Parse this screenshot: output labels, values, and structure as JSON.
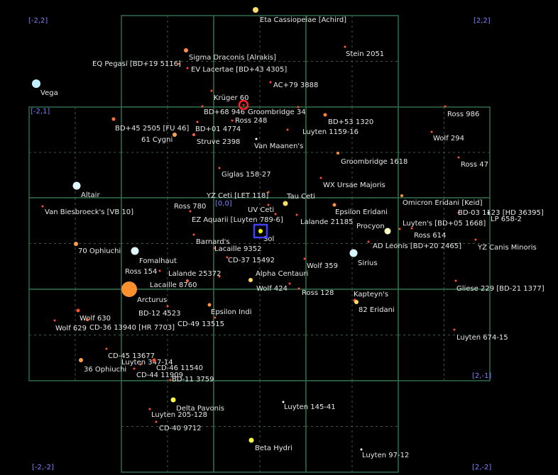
{
  "sector_labels": [
    {
      "text": "[-2,2]"
    },
    {
      "text": "[2,2]"
    },
    {
      "text": "[-2,1]"
    },
    {
      "text": "[0,0]"
    },
    {
      "text": "[2,-1]"
    },
    {
      "text": "[-2,-2]"
    },
    {
      "text": "[2,-2]"
    }
  ],
  "colors": {
    "grid_line": "#2e6b4a",
    "subgrid_line": "#3a5a48",
    "label_text": "#e8e8e8",
    "coord_text": "#8080ff",
    "sol_marker": "#4040ff",
    "selected_marker": "#ff2020"
  },
  "stars": [
    {
      "name": "Eta Cassiopeiae [Achird]",
      "color": "#ffe070"
    },
    {
      "name": "Stein 2051",
      "color": "#ff6040"
    },
    {
      "name": "Sigma Draconis [Alrakis]",
      "color": "#ff9040"
    },
    {
      "name": "EQ Pegasi [BD+19 5116]",
      "color": "#ff5030"
    },
    {
      "name": "EV Lacertae  [BD+43 4305]",
      "color": "#ff5030"
    },
    {
      "name": "AC+79  3888",
      "color": "#ff5030"
    },
    {
      "name": "Vega",
      "color": "#c0f0ff"
    },
    {
      "name": "Krüger 60",
      "color": "#ff5030"
    },
    {
      "name": "BD+68  946",
      "color": "#ff5030"
    },
    {
      "name": "Groombridge 34",
      "color": "#ff5030"
    },
    {
      "name": "Ross 248",
      "color": "#ff5030"
    },
    {
      "name": "BD+45  2505 [FU 46]",
      "color": "#ff7040"
    },
    {
      "name": "BD+01  4774",
      "color": "#ff6040"
    },
    {
      "name": "BD+53  1320",
      "color": "#ff8040"
    },
    {
      "name": "Luyten 1159-16",
      "color": "#ff5030"
    },
    {
      "name": "Ross 986",
      "color": "#ff5030"
    },
    {
      "name": "61 Cygni",
      "color": "#ffa050"
    },
    {
      "name": "Struve 2398",
      "color": "#ff6040"
    },
    {
      "name": "Van Maanen's",
      "color": "#ffffff"
    },
    {
      "name": "Wolf  294",
      "color": "#ff5030"
    },
    {
      "name": "Groombridge 1618",
      "color": "#ff9040"
    },
    {
      "name": "Ross 47",
      "color": "#ff5030"
    },
    {
      "name": "Giglas 158-27",
      "color": "#ff5030"
    },
    {
      "name": "Altair",
      "color": "#e0f8ff"
    },
    {
      "name": "WX Ursae Majoris",
      "color": "#ff5030"
    },
    {
      "name": "YZ Ceti [LET 118]",
      "color": "#ff5030"
    },
    {
      "name": "Tau Ceti",
      "color": "#ffe060"
    },
    {
      "name": "Omicron Eridani [Keid]",
      "color": "#ff9040"
    },
    {
      "name": "Van Biesbroeck's [VB 10]",
      "color": "#ff5030"
    },
    {
      "name": "Ross 780",
      "color": "#ff5030"
    },
    {
      "name": "UV Ceti",
      "color": "#ff5030"
    },
    {
      "name": "Epsilon Eridani",
      "color": "#ff9040"
    },
    {
      "name": "BD-03  1123 [HD 36395]",
      "color": "#ff5030"
    },
    {
      "name": "LP 658-2",
      "color": "#ffffff"
    },
    {
      "name": "EZ Aquarii [Luyten 789-6]",
      "color": "#ff5030"
    },
    {
      "name": "Lalande 21185",
      "color": "#ff5030"
    },
    {
      "name": "Procyon",
      "color": "#ffffc0"
    },
    {
      "name": "Luyten's [BD+05 1668]",
      "color": "#ff5030"
    },
    {
      "name": "Sol",
      "color": "#ffff00"
    },
    {
      "name": "Ross 614",
      "color": "#ff5030"
    },
    {
      "name": "Barnard's",
      "color": "#ff5030"
    },
    {
      "name": "AD Leonis [BD+20  2465]",
      "color": "#ff5030"
    },
    {
      "name": "YZ Canis Minoris",
      "color": "#ff5030"
    },
    {
      "name": "70 Ophiuchi",
      "color": "#ffa050"
    },
    {
      "name": "Lacaille 9352",
      "color": "#ff6040"
    },
    {
      "name": "Fomalhaut",
      "color": "#e0f8ff"
    },
    {
      "name": "CD-37  15492",
      "color": "#ff5030"
    },
    {
      "name": "Sirius",
      "color": "#d8f8ff"
    },
    {
      "name": "Wolf 359",
      "color": "#ff5030"
    },
    {
      "name": "Ross 154",
      "color": "#ff5030"
    },
    {
      "name": "Lalande 25372",
      "color": "#ff5030"
    },
    {
      "name": "Alpha Centauri",
      "color": "#ffe060"
    },
    {
      "name": "Lacaille 8760",
      "color": "#ff6040"
    },
    {
      "name": "Wolf 424",
      "color": "#ff5030"
    },
    {
      "name": "Ross 128",
      "color": "#ff5030"
    },
    {
      "name": "Kapteyn's",
      "color": "#ff5030"
    },
    {
      "name": "Gliese 229 [BD-21  1377]",
      "color": "#ff5030"
    },
    {
      "name": "Arcturus",
      "color": "#ff9030"
    },
    {
      "name": "82 Eridani",
      "color": "#ffe060"
    },
    {
      "name": "BD-12  4523",
      "color": "#ff5030"
    },
    {
      "name": "Epsilon Indi",
      "color": "#ff9040"
    },
    {
      "name": "CD-49  13515",
      "color": "#ff5030"
    },
    {
      "name": "Wolf 630",
      "color": "#ff5030"
    },
    {
      "name": "Wolf 629",
      "color": "#ff5030"
    },
    {
      "name": "CD-36 13940 [HR 7703]",
      "color": "#ff7040"
    },
    {
      "name": "Luyten 674-15",
      "color": "#ff5030"
    },
    {
      "name": "CD-45  13677",
      "color": "#ff5030"
    },
    {
      "name": "Luyten 347-14",
      "color": "#ff5030"
    },
    {
      "name": "36 Ophiuchi",
      "color": "#ffa050"
    },
    {
      "name": "CD-46  11540",
      "color": "#ff5030"
    },
    {
      "name": "CD-44  11909",
      "color": "#ff5030"
    },
    {
      "name": "BD-11  3759",
      "color": "#ff5030"
    },
    {
      "name": "Delta Pavonis",
      "color": "#ffff40"
    },
    {
      "name": "Luyten 205-128",
      "color": "#ff5030"
    },
    {
      "name": "Luyten 145-41",
      "color": "#ffffff"
    },
    {
      "name": "CD-40  9712",
      "color": "#ff5030"
    },
    {
      "name": "Beta Hydri",
      "color": "#ffff40"
    },
    {
      "name": "Luyten 97-12",
      "color": "#ffffff"
    }
  ]
}
